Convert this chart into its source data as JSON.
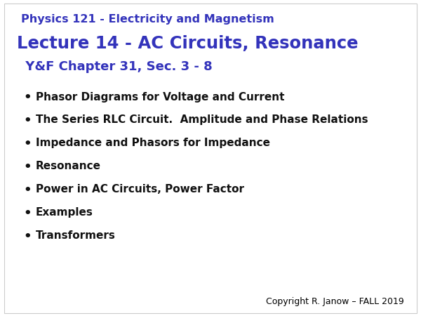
{
  "background_color": "#ffffff",
  "header_line1": "Physics 121 - Electricity and Magnetism",
  "header_line2": "Lecture 14 - AC Circuits, Resonance",
  "header_line3": " Y&F Chapter 31, Sec. 3 - 8",
  "header_color": "#3333bb",
  "bullet_color": "#111111",
  "bullet_items": [
    "Phasor Diagrams for Voltage and Current",
    "The Series RLC Circuit.  Amplitude and Phase Relations",
    "Impedance and Phasors for Impedance",
    "Resonance",
    "Power in AC Circuits, Power Factor",
    "Examples",
    "Transformers"
  ],
  "footer_text": "Copyright R. Janow – FALL 2019",
  "footer_color": "#000000",
  "header_line1_fontsize": 11.5,
  "header_line2_fontsize": 17.5,
  "header_line3_fontsize": 13.0,
  "bullet_fontsize": 11.0,
  "footer_fontsize": 9.0
}
